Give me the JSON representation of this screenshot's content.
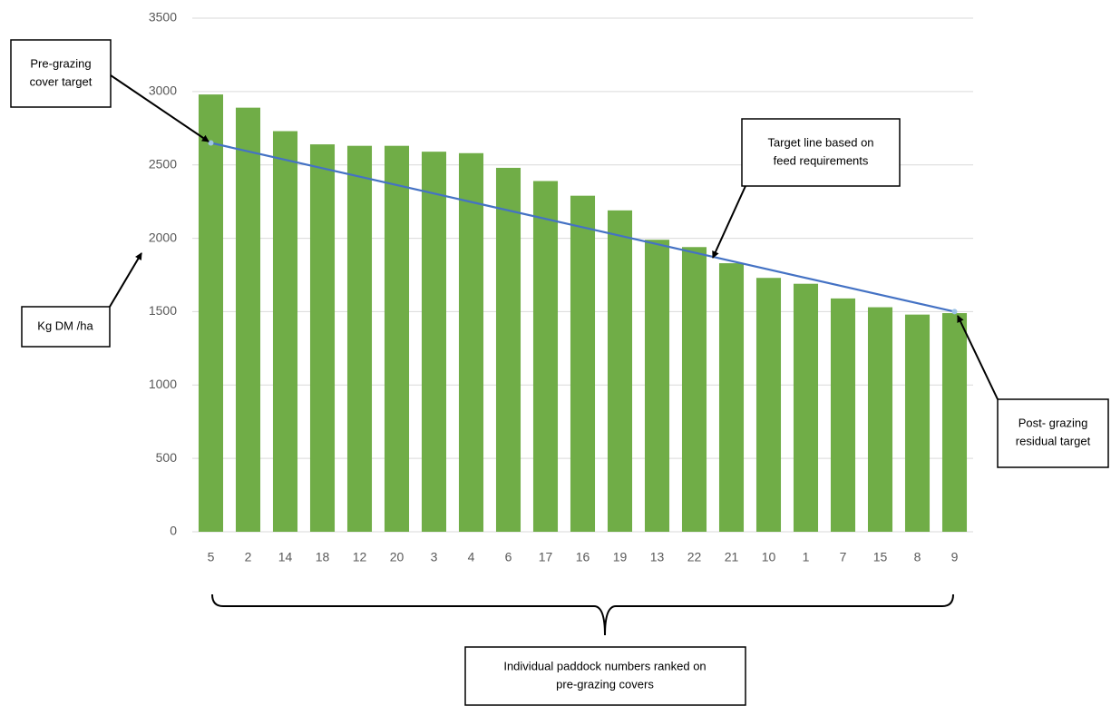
{
  "chart_data": {
    "type": "bar",
    "categories": [
      "5",
      "2",
      "14",
      "18",
      "12",
      "20",
      "3",
      "4",
      "6",
      "17",
      "16",
      "19",
      "13",
      "22",
      "21",
      "10",
      "1",
      "7",
      "15",
      "8",
      "9"
    ],
    "values": [
      2980,
      2890,
      2730,
      2640,
      2630,
      2630,
      2590,
      2580,
      2480,
      2390,
      2290,
      2190,
      1990,
      1940,
      1830,
      1730,
      1690,
      1590,
      1530,
      1480,
      1490
    ],
    "color": "#70ad47",
    "target_line": {
      "color": "#4472c4",
      "values": [
        2650,
        1500
      ]
    },
    "ylim": [
      0,
      3500
    ],
    "yticks": [
      0,
      500,
      1000,
      1500,
      2000,
      2500,
      3000,
      3500
    ],
    "grid": true,
    "annotations": [
      {
        "lines": [
          "Pre-grazing",
          "cover target"
        ]
      },
      {
        "lines": [
          "Target line based on",
          "feed requirements"
        ]
      },
      {
        "lines": [
          "Kg DM /ha"
        ]
      },
      {
        "lines": [
          "Post- grazing",
          "residual target"
        ]
      },
      {
        "lines": [
          "Individual paddock numbers ranked on",
          "pre-grazing covers"
        ]
      }
    ]
  }
}
